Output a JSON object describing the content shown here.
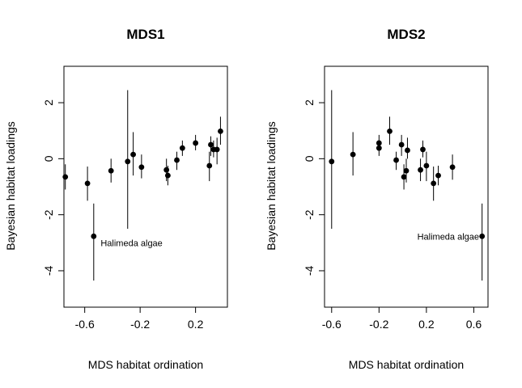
{
  "chart_data": [
    {
      "type": "scatter",
      "title": "MDS1",
      "xlabel": "MDS habitat ordination",
      "ylabel": "Bayesian habitat loadings",
      "xlim": [
        -0.75,
        0.43
      ],
      "ylim": [
        -5.3,
        3.3
      ],
      "xticks": [
        -0.6,
        -0.2,
        0.2
      ],
      "xtick_labels": [
        "-0.6",
        "-0.2",
        "0.2"
      ],
      "yticks": [
        2,
        0,
        -2,
        -4
      ],
      "ytick_labels": [
        "2",
        "0",
        "-2",
        "-4"
      ],
      "grid": false,
      "errorbars": true,
      "points": [
        {
          "x": -0.74,
          "y": -0.65,
          "lo": -1.1,
          "hi": -0.2
        },
        {
          "x": -0.58,
          "y": -0.88,
          "lo": -1.5,
          "hi": -0.28
        },
        {
          "x": -0.535,
          "y": -2.77,
          "lo": -4.35,
          "hi": -1.6
        },
        {
          "x": -0.41,
          "y": -0.43,
          "lo": -0.85,
          "hi": 0.0
        },
        {
          "x": -0.29,
          "y": -0.1,
          "lo": -2.5,
          "hi": 2.45
        },
        {
          "x": -0.25,
          "y": 0.15,
          "lo": -0.6,
          "hi": 0.95
        },
        {
          "x": -0.19,
          "y": -0.3,
          "lo": -0.7,
          "hi": 0.15
        },
        {
          "x": -0.01,
          "y": -0.4,
          "lo": -0.8,
          "hi": 0.0
        },
        {
          "x": 0.0,
          "y": -0.6,
          "lo": -0.95,
          "hi": -0.25
        },
        {
          "x": 0.065,
          "y": -0.05,
          "lo": -0.4,
          "hi": 0.25
        },
        {
          "x": 0.105,
          "y": 0.38,
          "lo": 0.1,
          "hi": 0.65
        },
        {
          "x": 0.2,
          "y": 0.56,
          "lo": 0.3,
          "hi": 0.85
        },
        {
          "x": 0.3,
          "y": -0.25,
          "lo": -0.8,
          "hi": 0.25
        },
        {
          "x": 0.31,
          "y": 0.5,
          "lo": 0.1,
          "hi": 0.8
        },
        {
          "x": 0.33,
          "y": 0.33,
          "lo": 0.05,
          "hi": 0.65
        },
        {
          "x": 0.355,
          "y": 0.33,
          "lo": -0.2,
          "hi": 0.75
        },
        {
          "x": 0.38,
          "y": 0.98,
          "lo": 0.5,
          "hi": 1.5
        }
      ],
      "annotations": [
        {
          "text": "Halimeda algae",
          "x": -0.485,
          "y": -3.0,
          "anchor": "start"
        }
      ]
    },
    {
      "type": "scatter",
      "title": "MDS2",
      "xlabel": "MDS habitat ordination",
      "ylabel": "Bayesian habitat loadings",
      "xlim": [
        -0.66,
        0.72
      ],
      "ylim": [
        -5.3,
        3.3
      ],
      "xticks": [
        -0.6,
        -0.2,
        0.2,
        0.6
      ],
      "xtick_labels": [
        "-0.6",
        "-0.2",
        "0.2",
        "0.6"
      ],
      "yticks": [
        2,
        0,
        -2,
        -4
      ],
      "ytick_labels": [
        "2",
        "0",
        "-2",
        "-4"
      ],
      "grid": false,
      "errorbars": true,
      "points": [
        {
          "x": -0.6,
          "y": -0.1,
          "lo": -2.5,
          "hi": 2.45
        },
        {
          "x": -0.42,
          "y": 0.15,
          "lo": -0.6,
          "hi": 0.95
        },
        {
          "x": -0.2,
          "y": 0.56,
          "lo": 0.3,
          "hi": 0.85
        },
        {
          "x": -0.2,
          "y": 0.38,
          "lo": 0.1,
          "hi": 0.65
        },
        {
          "x": -0.11,
          "y": 0.98,
          "lo": 0.5,
          "hi": 1.5
        },
        {
          "x": -0.055,
          "y": -0.05,
          "lo": -0.4,
          "hi": 0.25
        },
        {
          "x": -0.01,
          "y": 0.5,
          "lo": 0.1,
          "hi": 0.85
        },
        {
          "x": 0.01,
          "y": -0.65,
          "lo": -1.1,
          "hi": -0.2
        },
        {
          "x": 0.03,
          "y": -0.43,
          "lo": -0.85,
          "hi": 0.0
        },
        {
          "x": 0.04,
          "y": 0.3,
          "lo": 0.0,
          "hi": 0.75
        },
        {
          "x": 0.15,
          "y": -0.4,
          "lo": -0.8,
          "hi": 0.0
        },
        {
          "x": 0.17,
          "y": 0.33,
          "lo": 0.05,
          "hi": 0.65
        },
        {
          "x": 0.2,
          "y": -0.25,
          "lo": -0.8,
          "hi": 0.25
        },
        {
          "x": 0.26,
          "y": -0.88,
          "lo": -1.5,
          "hi": -0.28
        },
        {
          "x": 0.3,
          "y": -0.6,
          "lo": -0.95,
          "hi": -0.25
        },
        {
          "x": 0.42,
          "y": -0.3,
          "lo": -0.75,
          "hi": 0.15
        },
        {
          "x": 0.67,
          "y": -2.77,
          "lo": -4.35,
          "hi": -1.6
        }
      ],
      "annotations": [
        {
          "text": "Halimeda algae",
          "x": 0.645,
          "y": -2.77,
          "anchor": "end"
        }
      ]
    }
  ]
}
